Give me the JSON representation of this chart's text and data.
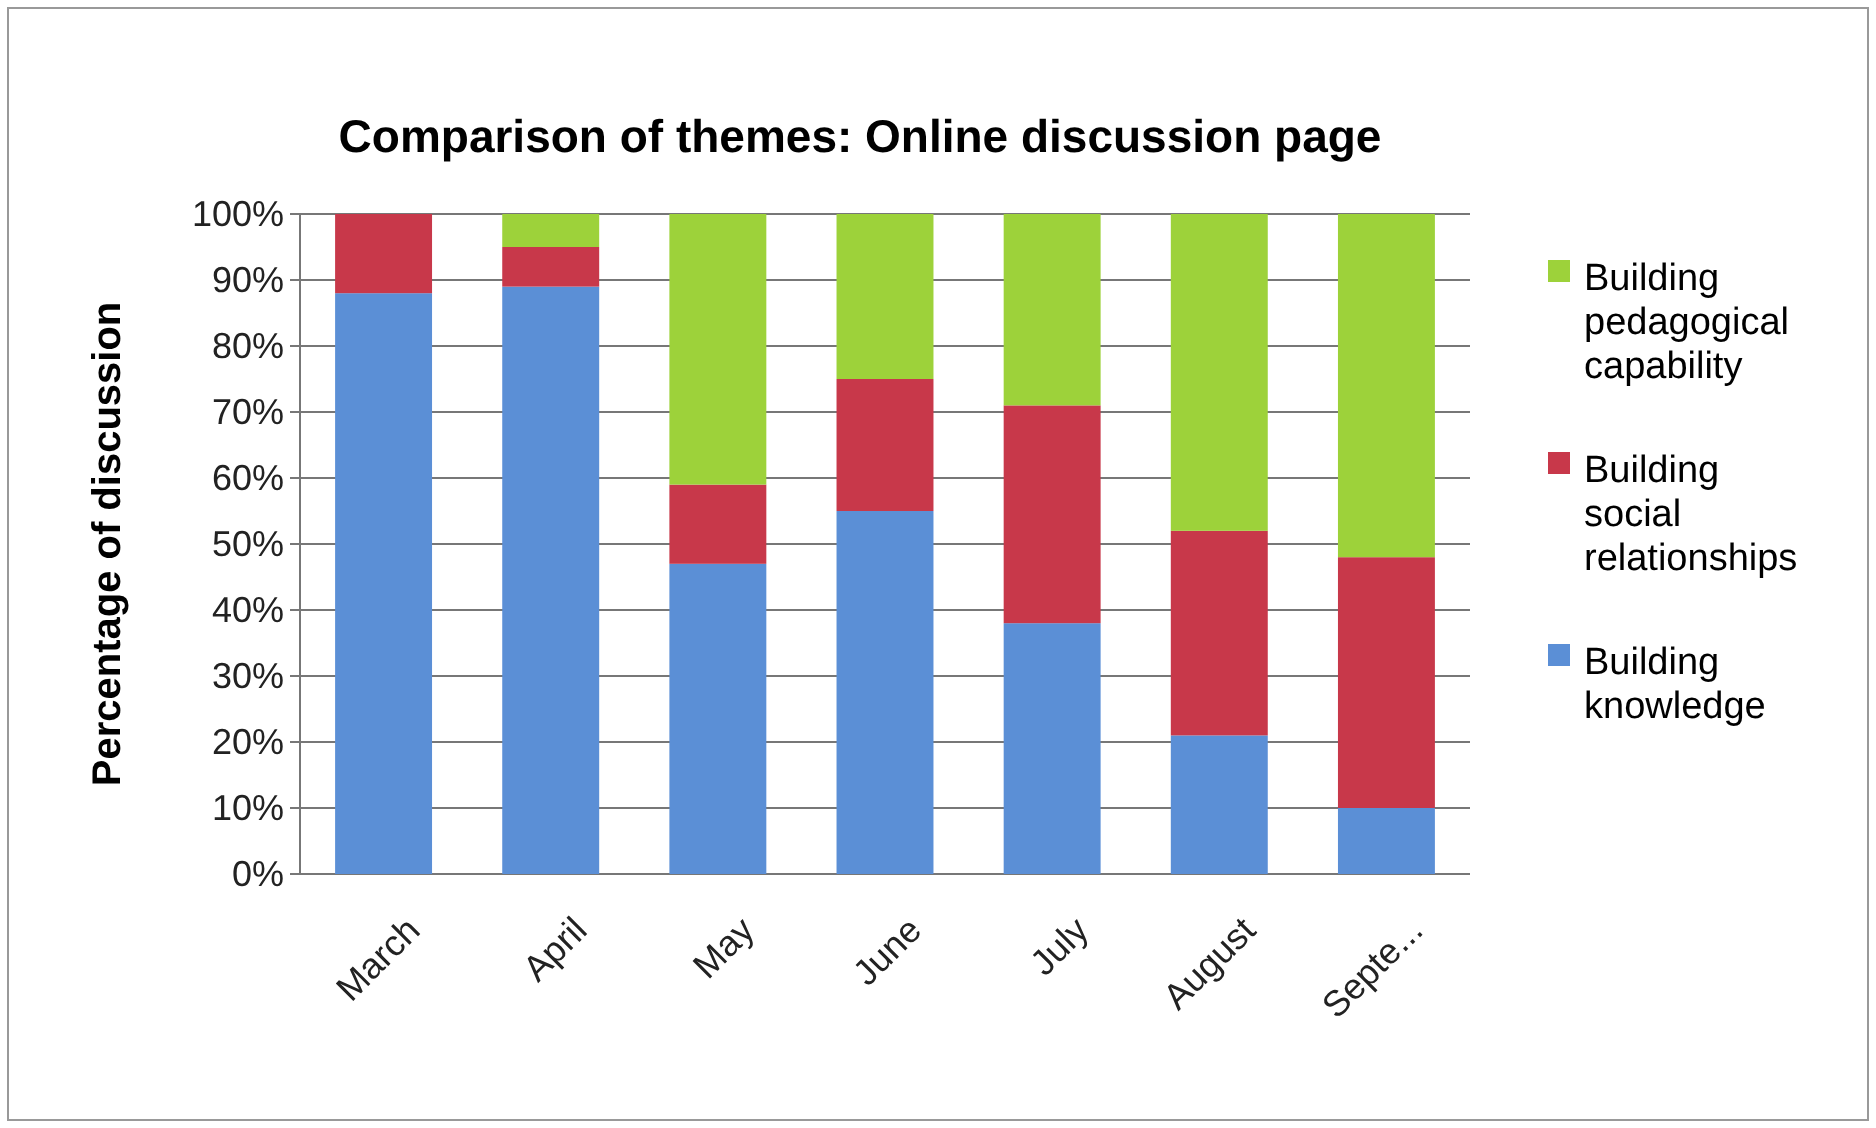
{
  "chart_data": {
    "type": "bar",
    "stacked": true,
    "title": "Comparison of themes: Online discussion page",
    "ylabel": "Percentage of discussion",
    "categories": [
      "March",
      "April",
      "May",
      "June",
      "July",
      "August",
      "Septe..."
    ],
    "series": [
      {
        "name": "Building knowledge",
        "color": "#5b8fd6",
        "values": [
          88,
          89,
          47,
          55,
          38,
          21,
          10
        ]
      },
      {
        "name": "Building social relationships",
        "color": "#c8384a",
        "values": [
          12,
          6,
          12,
          20,
          33,
          31,
          38
        ]
      },
      {
        "name": "Building pedagogical capability",
        "color": "#9dd23a",
        "values": [
          0,
          5,
          41,
          25,
          29,
          48,
          52
        ]
      }
    ],
    "ylim": [
      0,
      100
    ],
    "yticks": [
      {
        "value": 0,
        "label": "0%"
      },
      {
        "value": 10,
        "label": "10%"
      },
      {
        "value": 20,
        "label": "20%"
      },
      {
        "value": 30,
        "label": "30%"
      },
      {
        "value": 40,
        "label": "40%"
      },
      {
        "value": 50,
        "label": "50%"
      },
      {
        "value": 60,
        "label": "60%"
      },
      {
        "value": 70,
        "label": "70%"
      },
      {
        "value": 80,
        "label": "80%"
      },
      {
        "value": 90,
        "label": "90%"
      },
      {
        "value": 100,
        "label": "100%"
      }
    ],
    "grid": "y",
    "legend": "right"
  }
}
